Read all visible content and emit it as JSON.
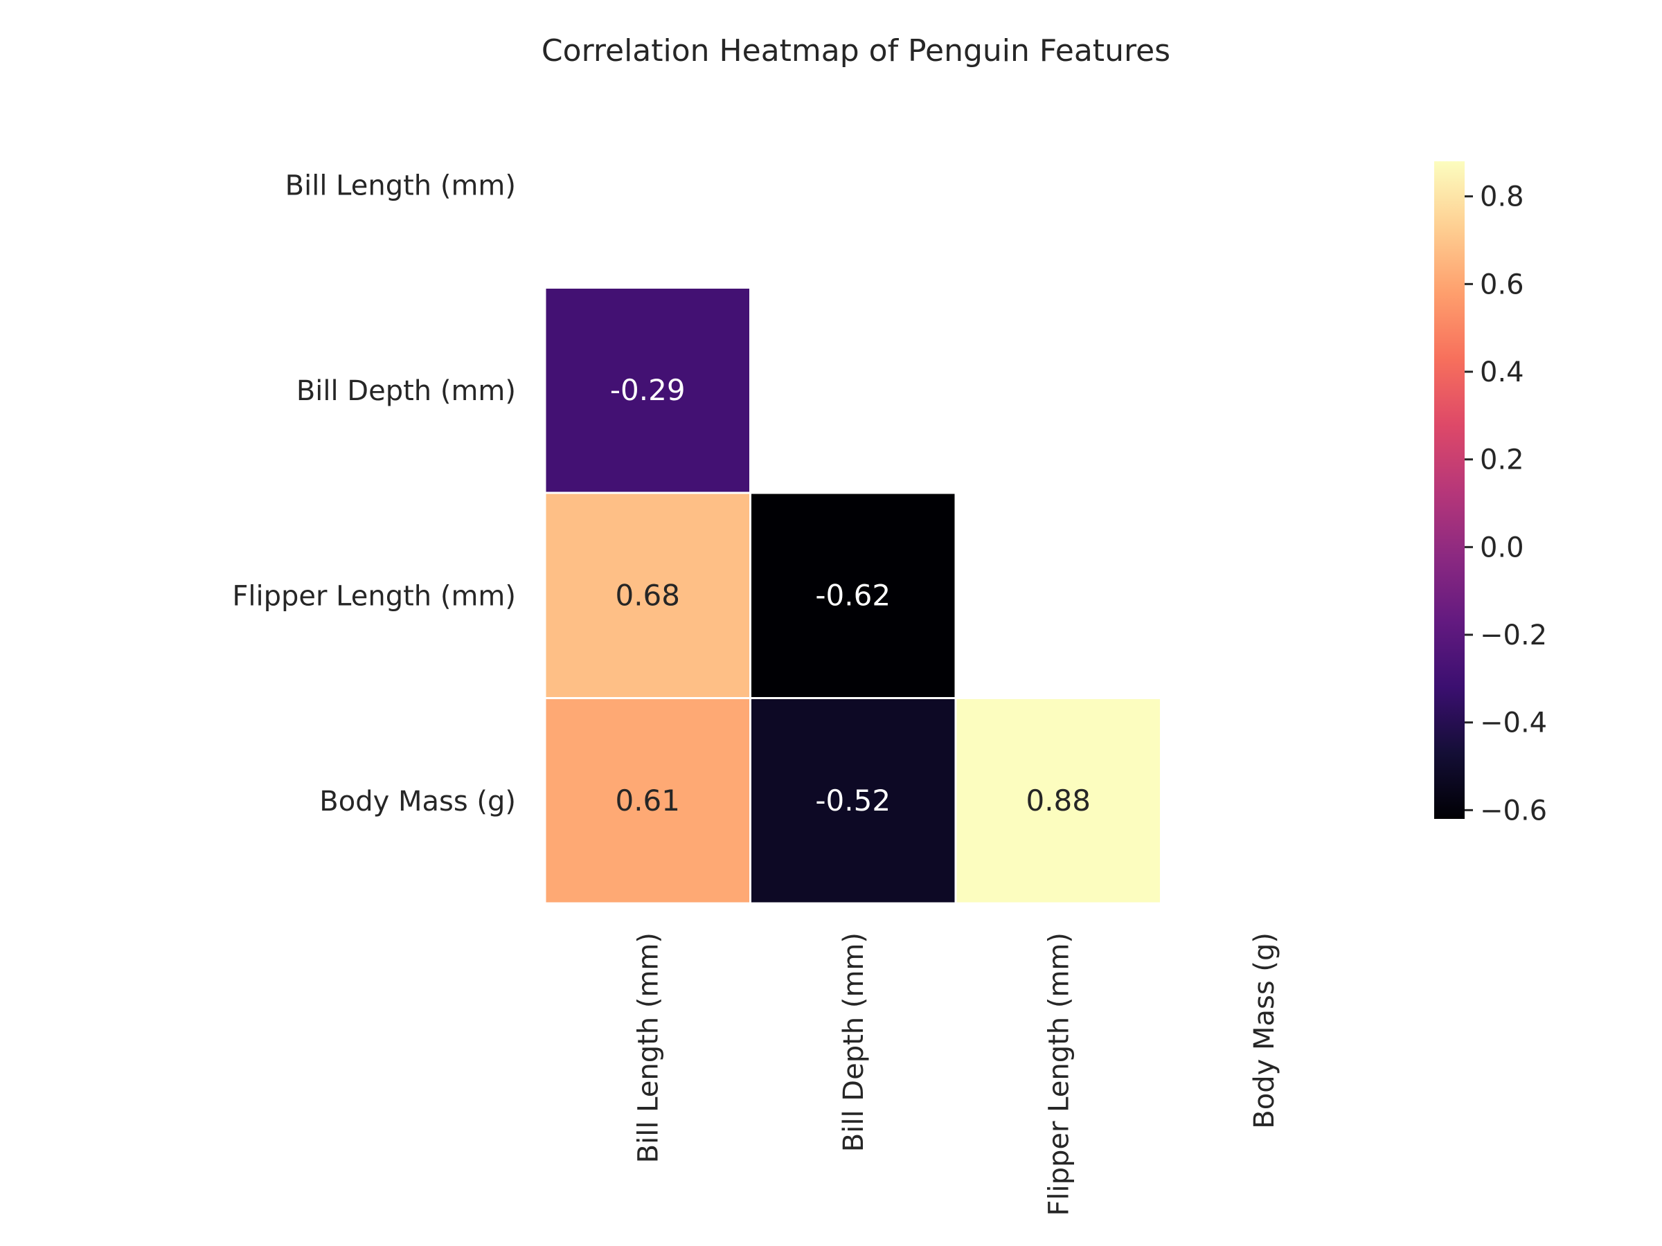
{
  "chart_data": {
    "type": "heatmap",
    "title": "Correlation Heatmap of Penguin Features",
    "row_labels": [
      "Bill Length (mm)",
      "Bill Depth (mm)",
      "Flipper Length (mm)",
      "Body Mass (g)"
    ],
    "col_labels": [
      "Bill Length (mm)",
      "Bill Depth (mm)",
      "Flipper Length (mm)",
      "Body Mass (g)"
    ],
    "mask": "upper-triangle-including-diagonal",
    "values": [
      [
        null,
        null,
        null,
        null
      ],
      [
        -0.29,
        null,
        null,
        null
      ],
      [
        0.68,
        -0.62,
        null,
        null
      ],
      [
        0.61,
        -0.52,
        0.88,
        null
      ]
    ],
    "value_labels": [
      [
        null,
        null,
        null,
        null
      ],
      [
        "-0.29",
        null,
        null,
        null
      ],
      [
        "0.68",
        "-0.62",
        null,
        null
      ],
      [
        "0.61",
        "-0.52",
        "0.88",
        null
      ]
    ],
    "colormap": "magma",
    "colorbar": {
      "range": [
        -0.62,
        0.88
      ],
      "ticks": [
        0.8,
        0.6,
        0.4,
        0.2,
        0.0,
        -0.2,
        -0.4,
        -0.6
      ],
      "tick_labels": [
        "0.8",
        "0.6",
        "0.4",
        "0.2",
        "0.0",
        "−0.2",
        "−0.4",
        "−0.6"
      ]
    },
    "grid": false,
    "cell_border_color": "#ffffff"
  }
}
